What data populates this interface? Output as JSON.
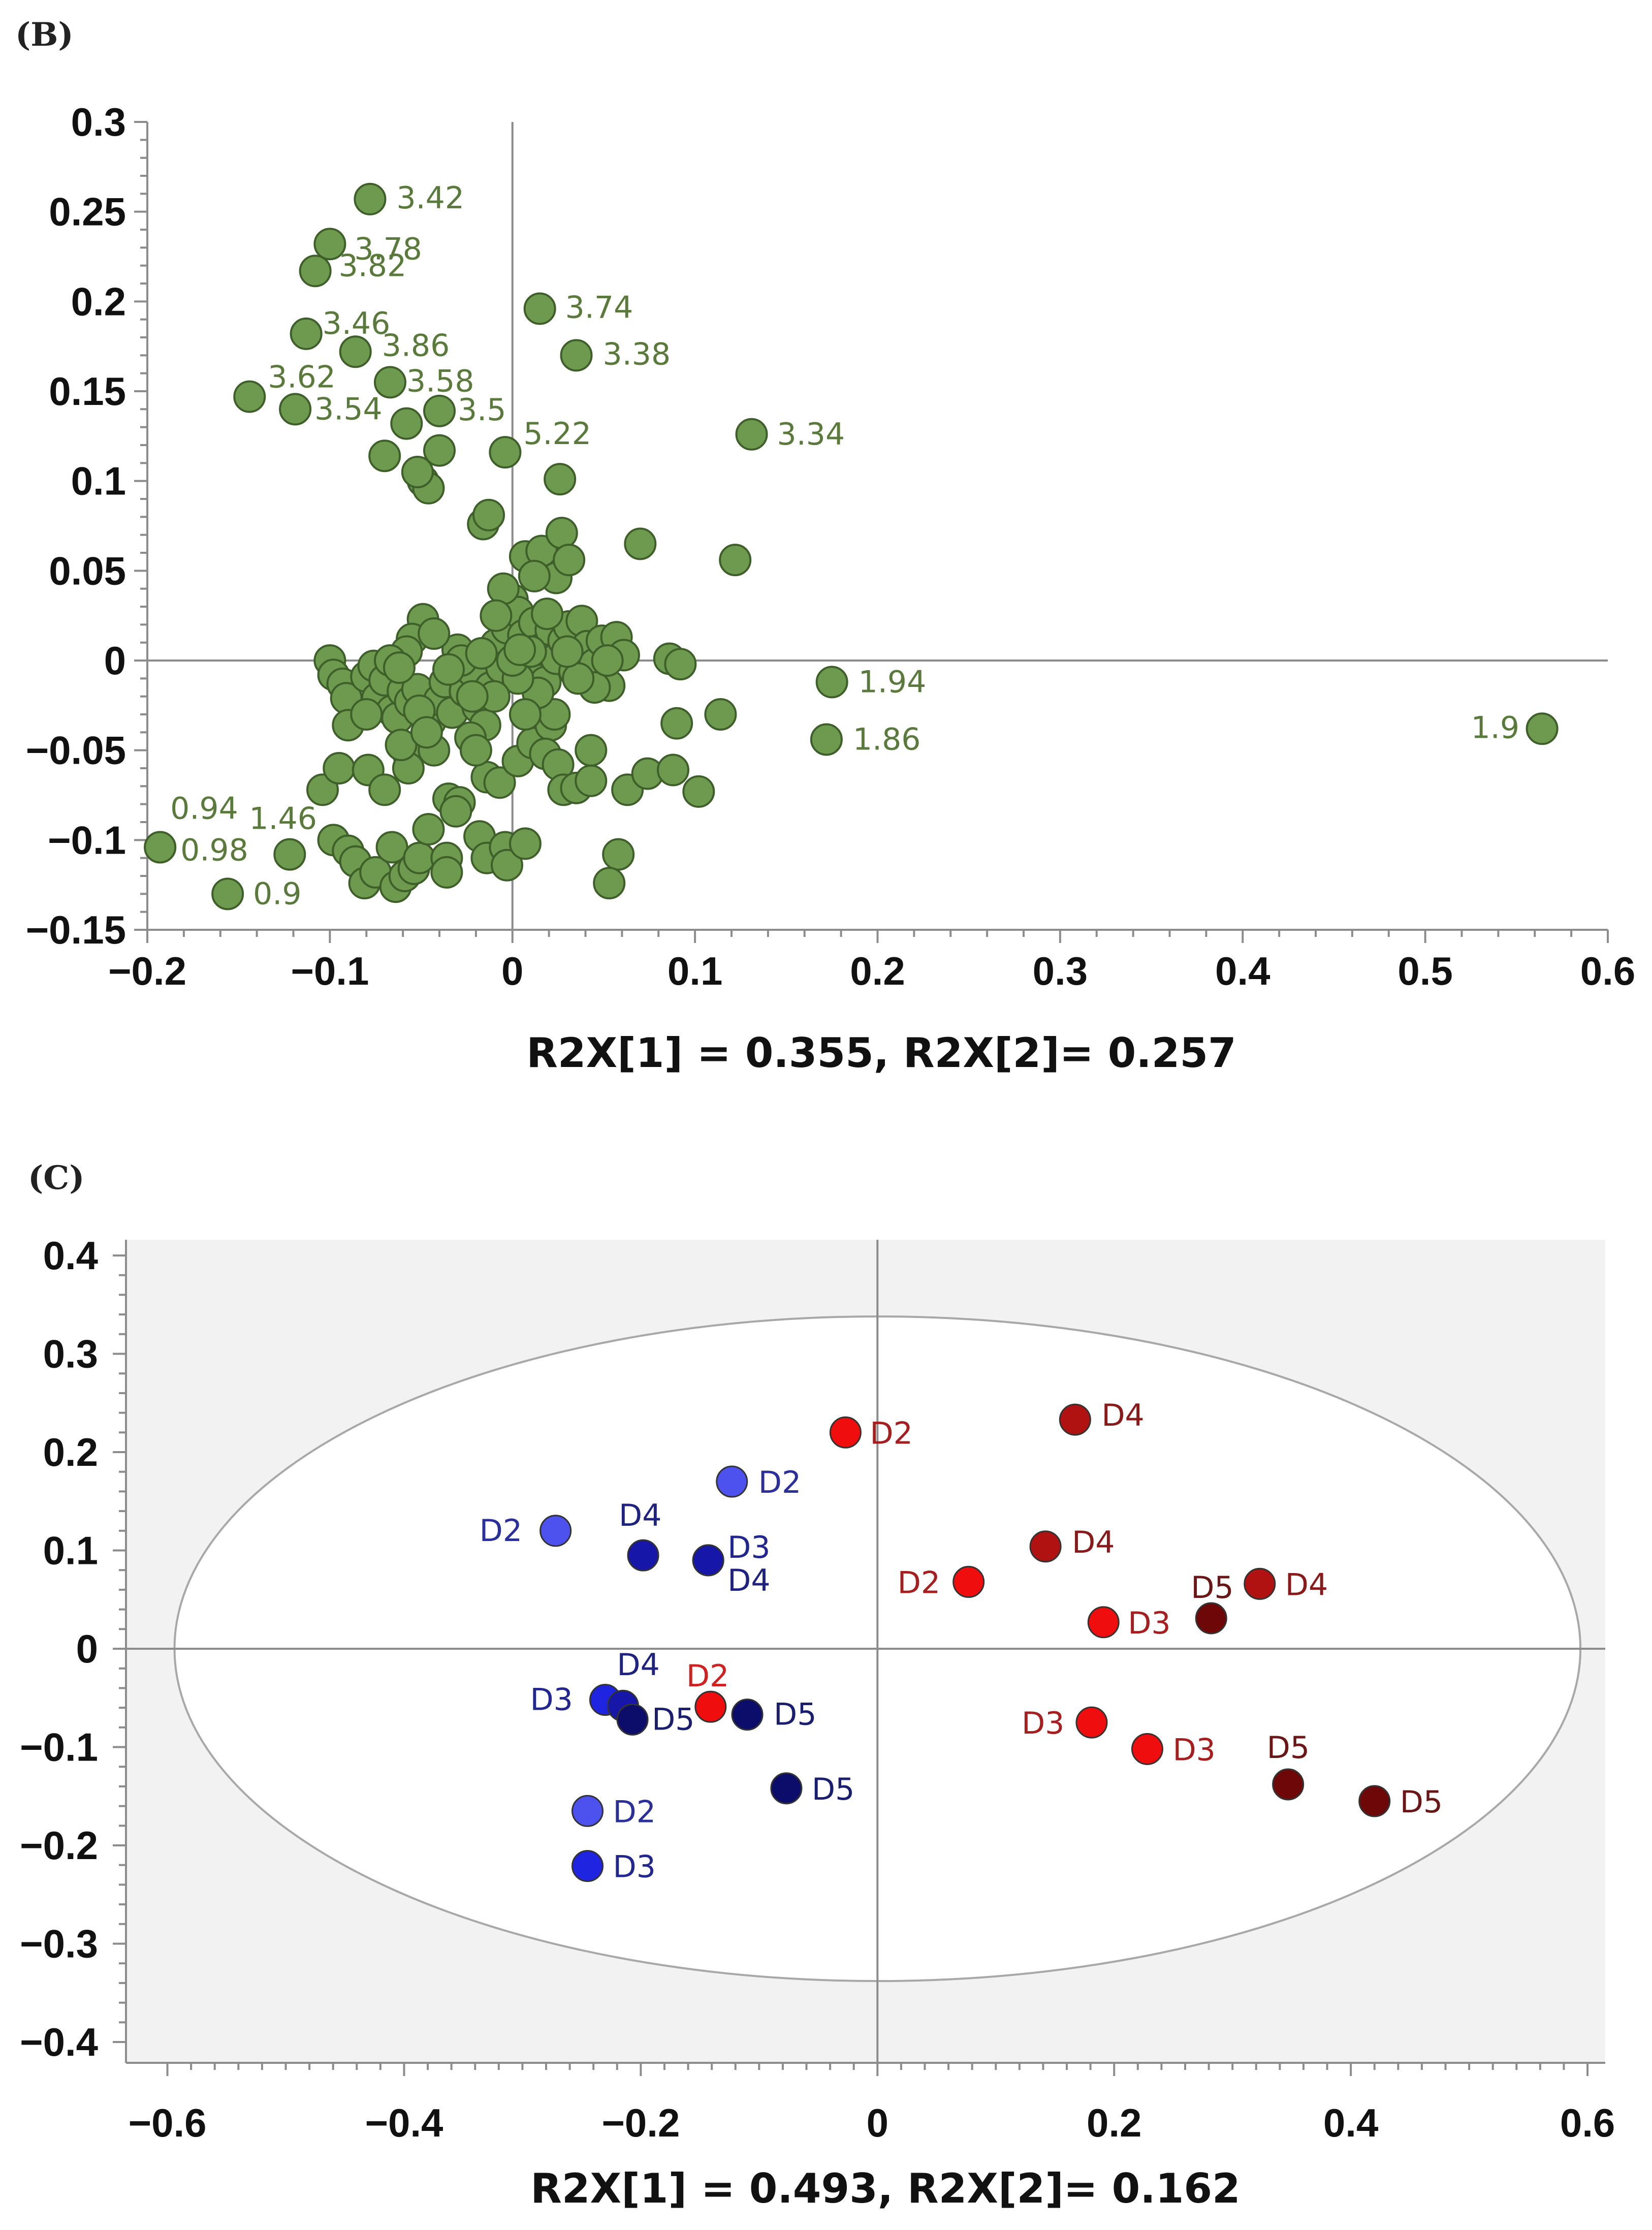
{
  "chart_data": [
    {
      "type": "scatter",
      "panel": "(B)",
      "xlabel": "R2X[1] = 0.355, R2X[2]= 0.257",
      "ylabel": "",
      "xlim": [
        -0.2,
        0.6
      ],
      "ylim": [
        -0.15,
        0.3
      ],
      "xticks": [
        "−0.2",
        "−0.1",
        "0",
        "0.1",
        "0.2",
        "0.3",
        "0.4",
        "0.5",
        "0.6"
      ],
      "yticks": [
        "0.3",
        "0.25",
        "0.2",
        "0.15",
        "0.1",
        "0.05",
        "0",
        "−0.05",
        "−0.1",
        "−0.15"
      ],
      "grid": false,
      "marker_color": "#6e9a50",
      "label_color": "#5a7a3c",
      "labeled_points": [
        {
          "label": "3.42",
          "x": -0.078,
          "y": 0.257
        },
        {
          "label": "3.78",
          "x": -0.1,
          "y": 0.232
        },
        {
          "label": "3.82",
          "x": -0.108,
          "y": 0.217
        },
        {
          "label": "3.46",
          "x": -0.113,
          "y": 0.182
        },
        {
          "label": "3.86",
          "x": -0.086,
          "y": 0.172
        },
        {
          "label": "3.62",
          "x": -0.144,
          "y": 0.147
        },
        {
          "label": "3.54",
          "x": -0.119,
          "y": 0.14
        },
        {
          "label": "3.58",
          "x": -0.067,
          "y": 0.155
        },
        {
          "label": "3.5",
          "x": -0.04,
          "y": 0.139
        },
        {
          "label": "5.22",
          "x": -0.004,
          "y": 0.116
        },
        {
          "label": "3.74",
          "x": 0.015,
          "y": 0.196
        },
        {
          "label": "3.38",
          "x": 0.035,
          "y": 0.17
        },
        {
          "label": "3.34",
          "x": 0.131,
          "y": 0.126
        },
        {
          "label": "1.94",
          "x": 0.175,
          "y": -0.012
        },
        {
          "label": "1.86",
          "x": 0.172,
          "y": -0.044
        },
        {
          "label": "1.9",
          "x": 0.564,
          "y": -0.038
        },
        {
          "label": "0.94",
          "x": -0.193,
          "y": -0.104
        },
        {
          "label": "0.98",
          "x": -0.193,
          "y": -0.104
        },
        {
          "label": "1.46",
          "x": -0.122,
          "y": -0.108
        },
        {
          "label": "0.9",
          "x": -0.156,
          "y": -0.13
        }
      ],
      "points": [
        [
          -0.1,
          0.0
        ],
        [
          -0.098,
          -0.008
        ],
        [
          -0.093,
          -0.013
        ],
        [
          -0.091,
          -0.021
        ],
        [
          -0.08,
          -0.009
        ],
        [
          -0.076,
          -0.003
        ],
        [
          -0.074,
          -0.021
        ],
        [
          -0.07,
          -0.011
        ],
        [
          -0.066,
          -0.028
        ],
        [
          -0.063,
          -0.032
        ],
        [
          -0.06,
          -0.017
        ],
        [
          -0.056,
          -0.023
        ],
        [
          -0.052,
          -0.016
        ],
        [
          -0.049,
          0.023
        ],
        [
          -0.055,
          0.012
        ],
        [
          -0.058,
          0.005
        ],
        [
          -0.045,
          -0.034
        ],
        [
          -0.04,
          -0.022
        ],
        [
          -0.037,
          -0.012
        ],
        [
          -0.033,
          -0.029
        ],
        [
          -0.03,
          0.006
        ],
        [
          -0.026,
          -0.017
        ],
        [
          -0.022,
          -0.006
        ],
        [
          -0.019,
          -0.026
        ],
        [
          -0.015,
          -0.036
        ],
        [
          -0.012,
          -0.015
        ],
        [
          -0.009,
          0.009
        ],
        [
          -0.006,
          -0.004
        ],
        [
          -0.003,
          0.018
        ],
        [
          0.0,
          0.034
        ],
        [
          0.003,
          0.027
        ],
        [
          0.006,
          0.014
        ],
        [
          0.009,
          -0.004
        ],
        [
          0.012,
          0.021
        ],
        [
          0.015,
          0.006
        ],
        [
          0.018,
          -0.012
        ],
        [
          0.021,
          0.017
        ],
        [
          0.024,
          0.001
        ],
        [
          0.028,
          0.011
        ],
        [
          0.031,
          0.019
        ],
        [
          0.034,
          -0.006
        ],
        [
          0.038,
          0.022
        ],
        [
          0.041,
          0.008
        ],
        [
          0.045,
          -0.002
        ],
        [
          0.049,
          0.011
        ],
        [
          0.053,
          -0.014
        ],
        [
          0.057,
          0.013
        ],
        [
          0.061,
          0.003
        ],
        [
          -0.005,
          0.04
        ],
        [
          0.007,
          0.058
        ],
        [
          0.016,
          0.061
        ],
        [
          0.024,
          0.046
        ],
        [
          0.027,
          0.071
        ],
        [
          0.031,
          0.056
        ],
        [
          0.012,
          0.047
        ],
        [
          -0.016,
          0.076
        ],
        [
          -0.013,
          0.081
        ],
        [
          0.026,
          0.101
        ],
        [
          -0.049,
          0.1
        ],
        [
          -0.046,
          0.096
        ],
        [
          -0.04,
          0.117
        ],
        [
          -0.052,
          0.105
        ],
        [
          -0.07,
          0.114
        ],
        [
          -0.058,
          0.132
        ],
        [
          0.07,
          0.065
        ],
        [
          0.122,
          0.056
        ],
        [
          -0.104,
          -0.072
        ],
        [
          -0.095,
          -0.06
        ],
        [
          -0.09,
          -0.036
        ],
        [
          -0.079,
          -0.061
        ],
        [
          -0.07,
          -0.072
        ],
        [
          -0.057,
          -0.052
        ],
        [
          -0.057,
          -0.06
        ],
        [
          -0.051,
          -0.028
        ],
        [
          -0.043,
          -0.05
        ],
        [
          -0.035,
          -0.077
        ],
        [
          -0.029,
          -0.079
        ],
        [
          -0.023,
          -0.043
        ],
        [
          -0.014,
          -0.065
        ],
        [
          -0.007,
          -0.068
        ],
        [
          0.003,
          -0.056
        ],
        [
          0.011,
          -0.046
        ],
        [
          0.021,
          -0.036
        ],
        [
          0.018,
          -0.052
        ],
        [
          0.025,
          -0.058
        ],
        [
          0.028,
          -0.072
        ],
        [
          0.035,
          -0.071
        ],
        [
          0.043,
          -0.067
        ],
        [
          0.043,
          -0.05
        ],
        [
          0.063,
          -0.072
        ],
        [
          0.074,
          -0.063
        ],
        [
          0.088,
          -0.061
        ],
        [
          0.102,
          -0.073
        ],
        [
          0.114,
          -0.03
        ],
        [
          0.09,
          -0.035
        ],
        [
          0.086,
          0.001
        ],
        [
          0.092,
          -0.002
        ],
        [
          -0.098,
          -0.1
        ],
        [
          -0.09,
          -0.106
        ],
        [
          -0.086,
          -0.112
        ],
        [
          -0.081,
          -0.124
        ],
        [
          -0.075,
          -0.118
        ],
        [
          -0.066,
          -0.104
        ],
        [
          -0.064,
          -0.126
        ],
        [
          -0.059,
          -0.12
        ],
        [
          -0.054,
          -0.116
        ],
        [
          -0.051,
          -0.11
        ],
        [
          -0.046,
          -0.094
        ],
        [
          -0.036,
          -0.11
        ],
        [
          -0.036,
          -0.118
        ],
        [
          -0.031,
          -0.084
        ],
        [
          -0.018,
          -0.098
        ],
        [
          -0.014,
          -0.11
        ],
        [
          -0.004,
          -0.104
        ],
        [
          -0.003,
          -0.114
        ],
        [
          0.007,
          -0.102
        ],
        [
          0.058,
          -0.108
        ],
        [
          0.053,
          -0.124
        ],
        [
          0.023,
          -0.03
        ],
        [
          0.014,
          -0.018
        ],
        [
          0.007,
          -0.03
        ],
        [
          0.003,
          -0.01
        ],
        [
          -0.01,
          -0.02
        ],
        [
          -0.02,
          -0.05
        ],
        [
          -0.028,
          0.0
        ],
        [
          -0.035,
          -0.005
        ],
        [
          -0.043,
          0.015
        ],
        [
          0.045,
          -0.015
        ],
        [
          0.036,
          -0.01
        ],
        [
          -0.08,
          -0.03
        ],
        [
          -0.067,
          0.0
        ],
        [
          -0.062,
          -0.004
        ],
        [
          -0.061,
          -0.047
        ],
        [
          0.0,
          0.0
        ],
        [
          0.01,
          0.005
        ],
        [
          -0.017,
          0.004
        ],
        [
          -0.009,
          0.025
        ],
        [
          0.004,
          0.006
        ],
        [
          0.03,
          0.005
        ],
        [
          0.019,
          0.026
        ],
        [
          -0.022,
          -0.02
        ],
        [
          0.052,
          0.0
        ],
        [
          -0.047,
          -0.04
        ]
      ]
    },
    {
      "type": "scatter",
      "panel": "(C)",
      "xlabel": "R2X[1] = 0.493, R2X[2]= 0.162",
      "ylabel": "",
      "xlim": [
        -0.6,
        0.6
      ],
      "ylim": [
        -0.4,
        0.4
      ],
      "xticks": [
        "−0.6",
        "−0.4",
        "−0.2",
        "0",
        "0.2",
        "0.4",
        "0.6"
      ],
      "yticks": [
        "0.4",
        "0.3",
        "0.2",
        "0.1",
        "0",
        "−0.1",
        "−0.2",
        "−0.3",
        "−0.4"
      ],
      "grid": false,
      "background": "#f2f2f3",
      "ellipse": {
        "rx": 0.594,
        "ry": 0.338
      },
      "points": [
        {
          "label": "D2",
          "x": -0.027,
          "y": 0.22,
          "color": "#f00d0d",
          "label_color": "#a61e1e"
        },
        {
          "label": "D2",
          "x": 0.077,
          "y": 0.068,
          "color": "#f00d0d",
          "label_color": "#a61e1e"
        },
        {
          "label": "D2",
          "x": -0.141,
          "y": -0.059,
          "color": "#f00d0d",
          "label_color": "#d02020"
        },
        {
          "label": "D3",
          "x": 0.191,
          "y": 0.027,
          "color": "#f00d0d",
          "label_color": "#a61e1e"
        },
        {
          "label": "D3",
          "x": 0.181,
          "y": -0.075,
          "color": "#f00d0d",
          "label_color": "#a61e1e"
        },
        {
          "label": "D3",
          "x": 0.228,
          "y": -0.102,
          "color": "#f00d0d",
          "label_color": "#a61e1e"
        },
        {
          "label": "D4",
          "x": 0.167,
          "y": 0.233,
          "color": "#b01212",
          "label_color": "#8a1a1a"
        },
        {
          "label": "D4",
          "x": 0.142,
          "y": 0.104,
          "color": "#b01212",
          "label_color": "#8a1a1a"
        },
        {
          "label": "D4",
          "x": 0.323,
          "y": 0.066,
          "color": "#b01212",
          "label_color": "#8a1a1a"
        },
        {
          "label": "D5",
          "x": 0.282,
          "y": 0.031,
          "color": "#6e0808",
          "label_color": "#6a1616"
        },
        {
          "label": "D5",
          "x": 0.347,
          "y": -0.138,
          "color": "#6e0808",
          "label_color": "#6a1616"
        },
        {
          "label": "D5",
          "x": 0.42,
          "y": -0.155,
          "color": "#6e0808",
          "label_color": "#6a1616"
        },
        {
          "label": "D2",
          "x": -0.123,
          "y": 0.17,
          "color": "#4d52ee",
          "label_color": "#2a2f9a"
        },
        {
          "label": "D2",
          "x": -0.272,
          "y": 0.12,
          "color": "#4d52ee",
          "label_color": "#2a2f9a"
        },
        {
          "label": "D2",
          "x": -0.245,
          "y": -0.165,
          "color": "#4d52ee",
          "label_color": "#2a2f9a"
        },
        {
          "label": "D3",
          "x": -0.245,
          "y": -0.221,
          "color": "#1f24e0",
          "label_color": "#22278f"
        },
        {
          "label": "D3",
          "x": -0.23,
          "y": -0.052,
          "color": "#1f24e0",
          "label_color": "#22278f"
        },
        {
          "label": "D3",
          "x": -0.143,
          "y": 0.09,
          "color": "#1f24e0",
          "label_color": "#22278f"
        },
        {
          "label": "D4",
          "x": -0.198,
          "y": 0.095,
          "color": "#1616a8",
          "label_color": "#1f237f"
        },
        {
          "label": "D4",
          "x": -0.143,
          "y": 0.09,
          "color": "#1616a8",
          "label_color": "#1f237f"
        },
        {
          "label": "D4",
          "x": -0.215,
          "y": -0.058,
          "color": "#1616a8",
          "label_color": "#1f237f"
        },
        {
          "label": "D5",
          "x": -0.207,
          "y": -0.072,
          "color": "#0c0c6a",
          "label_color": "#1a1e6f"
        },
        {
          "label": "D5",
          "x": -0.11,
          "y": -0.067,
          "color": "#0c0c6a",
          "label_color": "#1a1e6f"
        },
        {
          "label": "D5",
          "x": -0.077,
          "y": -0.142,
          "color": "#0c0c6a",
          "label_color": "#1a1e6f"
        }
      ]
    }
  ]
}
